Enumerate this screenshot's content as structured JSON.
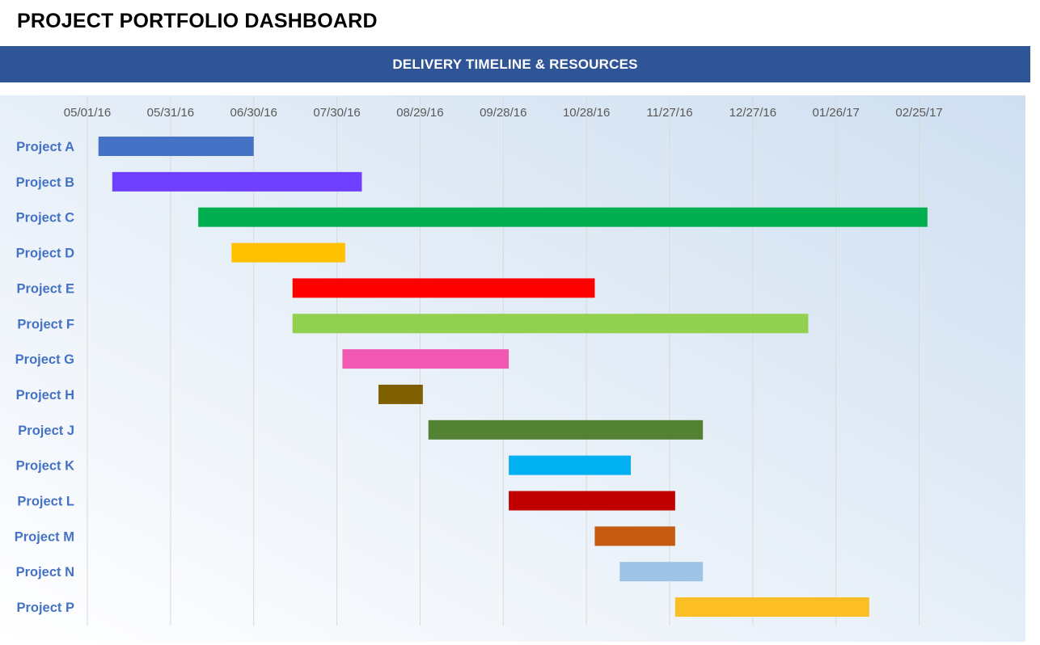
{
  "page": {
    "title": "PROJECT PORTFOLIO DASHBOARD",
    "banner": "DELIVERY TIMELINE & RESOURCES"
  },
  "colors": {
    "banner": "#2f5597",
    "label": "#4472c4",
    "tick": "#595959",
    "grid": "#d9d9d9"
  },
  "chart_data": {
    "type": "bar",
    "orientation": "horizontal-gantt",
    "x_axis": {
      "type": "date",
      "position": "top",
      "ticks": [
        "05/01/16",
        "05/31/16",
        "06/30/16",
        "07/30/16",
        "08/29/16",
        "09/28/16",
        "10/28/16",
        "11/27/16",
        "12/27/16",
        "01/26/17",
        "02/25/17"
      ],
      "range": [
        "2016-05-01",
        "2017-03-26"
      ]
    },
    "grid": true,
    "legend": "none",
    "series": [
      {
        "category": "Project A",
        "start": "2016-05-05",
        "end": "2016-06-30",
        "color": "#4472c4"
      },
      {
        "category": "Project B",
        "start": "2016-05-10",
        "end": "2016-08-08",
        "color": "#6f3fff"
      },
      {
        "category": "Project C",
        "start": "2016-06-10",
        "end": "2017-02-28",
        "color": "#00b050"
      },
      {
        "category": "Project D",
        "start": "2016-06-22",
        "end": "2016-08-02",
        "color": "#ffc000"
      },
      {
        "category": "Project E",
        "start": "2016-07-14",
        "end": "2016-10-31",
        "color": "#ff0000"
      },
      {
        "category": "Project F",
        "start": "2016-07-14",
        "end": "2017-01-16",
        "color": "#92d050"
      },
      {
        "category": "Project G",
        "start": "2016-08-01",
        "end": "2016-09-30",
        "color": "#f058b4"
      },
      {
        "category": "Project H",
        "start": "2016-08-14",
        "end": "2016-08-30",
        "color": "#7f6000"
      },
      {
        "category": "Project J",
        "start": "2016-09-01",
        "end": "2016-12-09",
        "color": "#548235"
      },
      {
        "category": "Project K",
        "start": "2016-09-30",
        "end": "2016-11-13",
        "color": "#00b0f0"
      },
      {
        "category": "Project L",
        "start": "2016-09-30",
        "end": "2016-11-29",
        "color": "#c00000"
      },
      {
        "category": "Project M",
        "start": "2016-10-31",
        "end": "2016-11-29",
        "color": "#c55a11"
      },
      {
        "category": "Project N",
        "start": "2016-11-09",
        "end": "2016-12-09",
        "color": "#9dc3e6"
      },
      {
        "category": "Project P",
        "start": "2016-11-29",
        "end": "2017-02-07",
        "color": "#fbbf24"
      }
    ]
  }
}
